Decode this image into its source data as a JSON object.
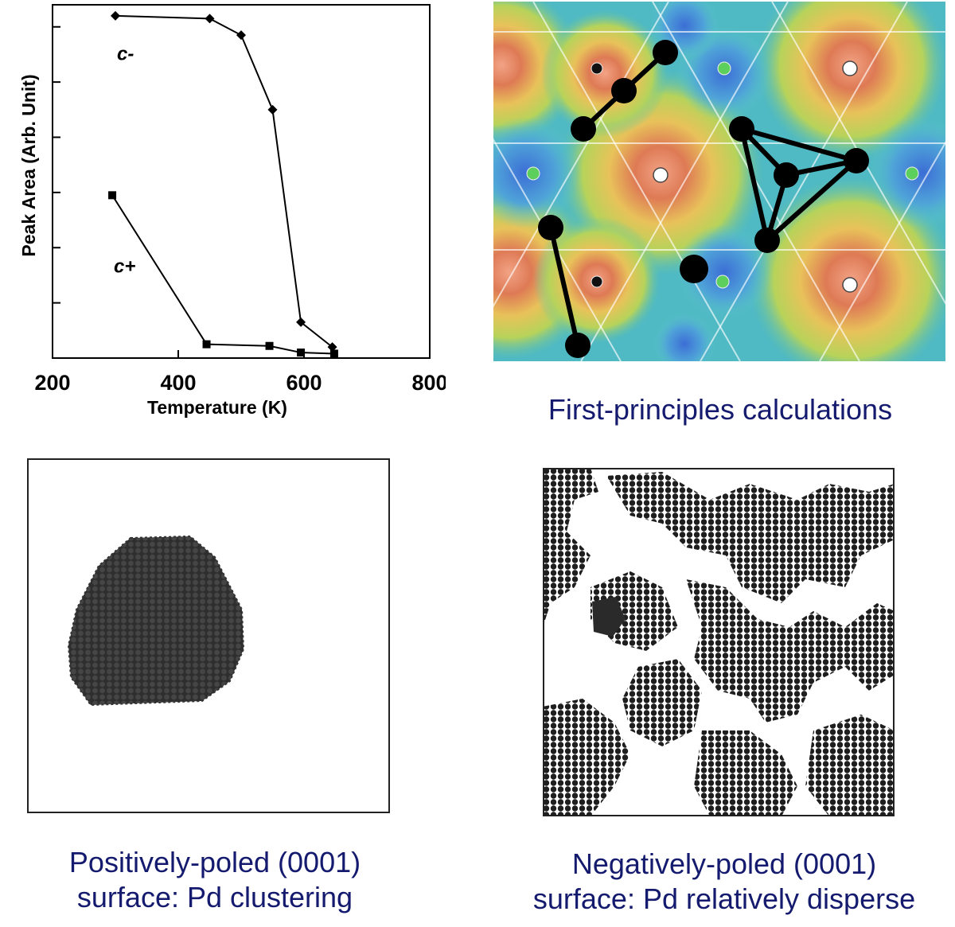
{
  "chart_data": {
    "type": "line",
    "xlabel": "Temperature (K)",
    "ylabel": "Peak Area (Arb. Unit)",
    "xlim": [
      200,
      800
    ],
    "ylim": [
      0,
      6.4
    ],
    "x_ticks": [
      "200",
      "400",
      "600",
      "800"
    ],
    "y_tick_count": 6,
    "grid": false,
    "series": [
      {
        "name": "c-",
        "marker": "diamond",
        "points": [
          [
            300,
            6.2
          ],
          [
            450,
            6.15
          ],
          [
            500,
            5.85
          ],
          [
            550,
            4.5
          ],
          [
            595,
            0.65
          ],
          [
            645,
            0.2
          ]
        ]
      },
      {
        "name": "c+",
        "marker": "square",
        "points": [
          [
            295,
            2.95
          ],
          [
            445,
            0.25
          ],
          [
            545,
            0.22
          ],
          [
            595,
            0.1
          ],
          [
            648,
            0.08
          ]
        ]
      }
    ]
  },
  "captions": {
    "first_principles": "First-principles calculations",
    "positive_line1": "Positively-poled (0001)",
    "positive_line2": "surface: Pd clustering",
    "negative_line1": "Negatively-poled (0001)",
    "negative_line2": "surface: Pd relatively disperse"
  },
  "colors": {
    "caption": "#141a6e",
    "cluster_atoms": "#3a3a3a",
    "disperse_atoms": "#1e1e1e"
  }
}
